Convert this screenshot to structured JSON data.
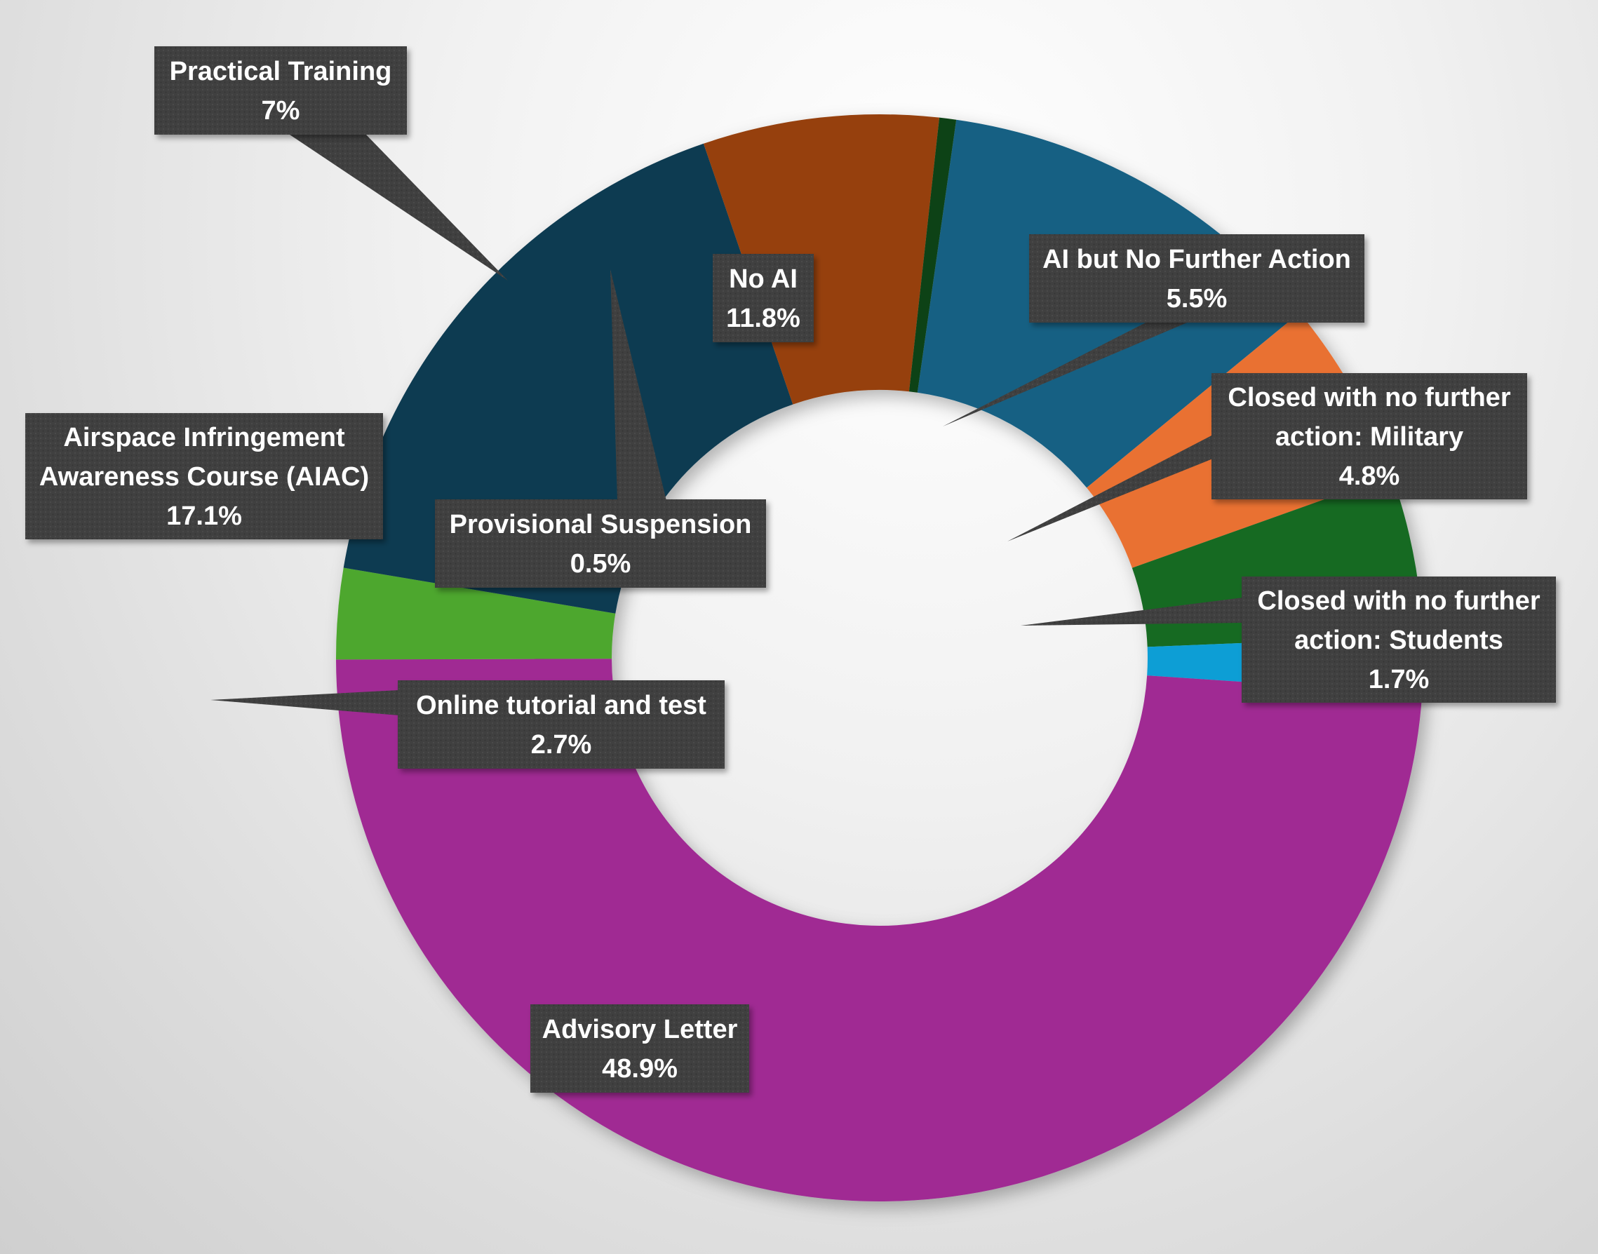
{
  "chart_data": {
    "type": "pie",
    "style": "donut",
    "title": "",
    "legend": "none",
    "slices": [
      {
        "label": [
          "No AI"
        ],
        "display_value": "11.8%",
        "value": 11.8,
        "color": "#176083"
      },
      {
        "label": [
          "AI but No Further Action"
        ],
        "display_value": "5.5%",
        "value": 5.5,
        "color": "#e97132"
      },
      {
        "label": [
          "Closed with no further",
          "action: Military"
        ],
        "display_value": "4.8%",
        "value": 4.8,
        "color": "#196b24"
      },
      {
        "label": [
          "Closed with no further",
          "action: Students"
        ],
        "display_value": "1.7%",
        "value": 1.7,
        "color": "#0f9ed5"
      },
      {
        "label": [
          "Advisory Letter"
        ],
        "display_value": "48.9%",
        "value": 48.9,
        "color": "#a02b93"
      },
      {
        "label": [
          "Online tutorial and test"
        ],
        "display_value": "2.7%",
        "value": 2.7,
        "color": "#4ea72e"
      },
      {
        "label": [
          "Airspace Infringement",
          "Awareness Course (AIAC)"
        ],
        "display_value": "17.1%",
        "value": 17.1,
        "color": "#0e3a51"
      },
      {
        "label": [
          "Practical Training"
        ],
        "display_value": "7%",
        "value": 7.0,
        "color": "#964010"
      },
      {
        "label": [
          "Provisional Suspension"
        ],
        "display_value": "0.5%",
        "value": 0.5,
        "color": "#0e4315"
      }
    ]
  }
}
